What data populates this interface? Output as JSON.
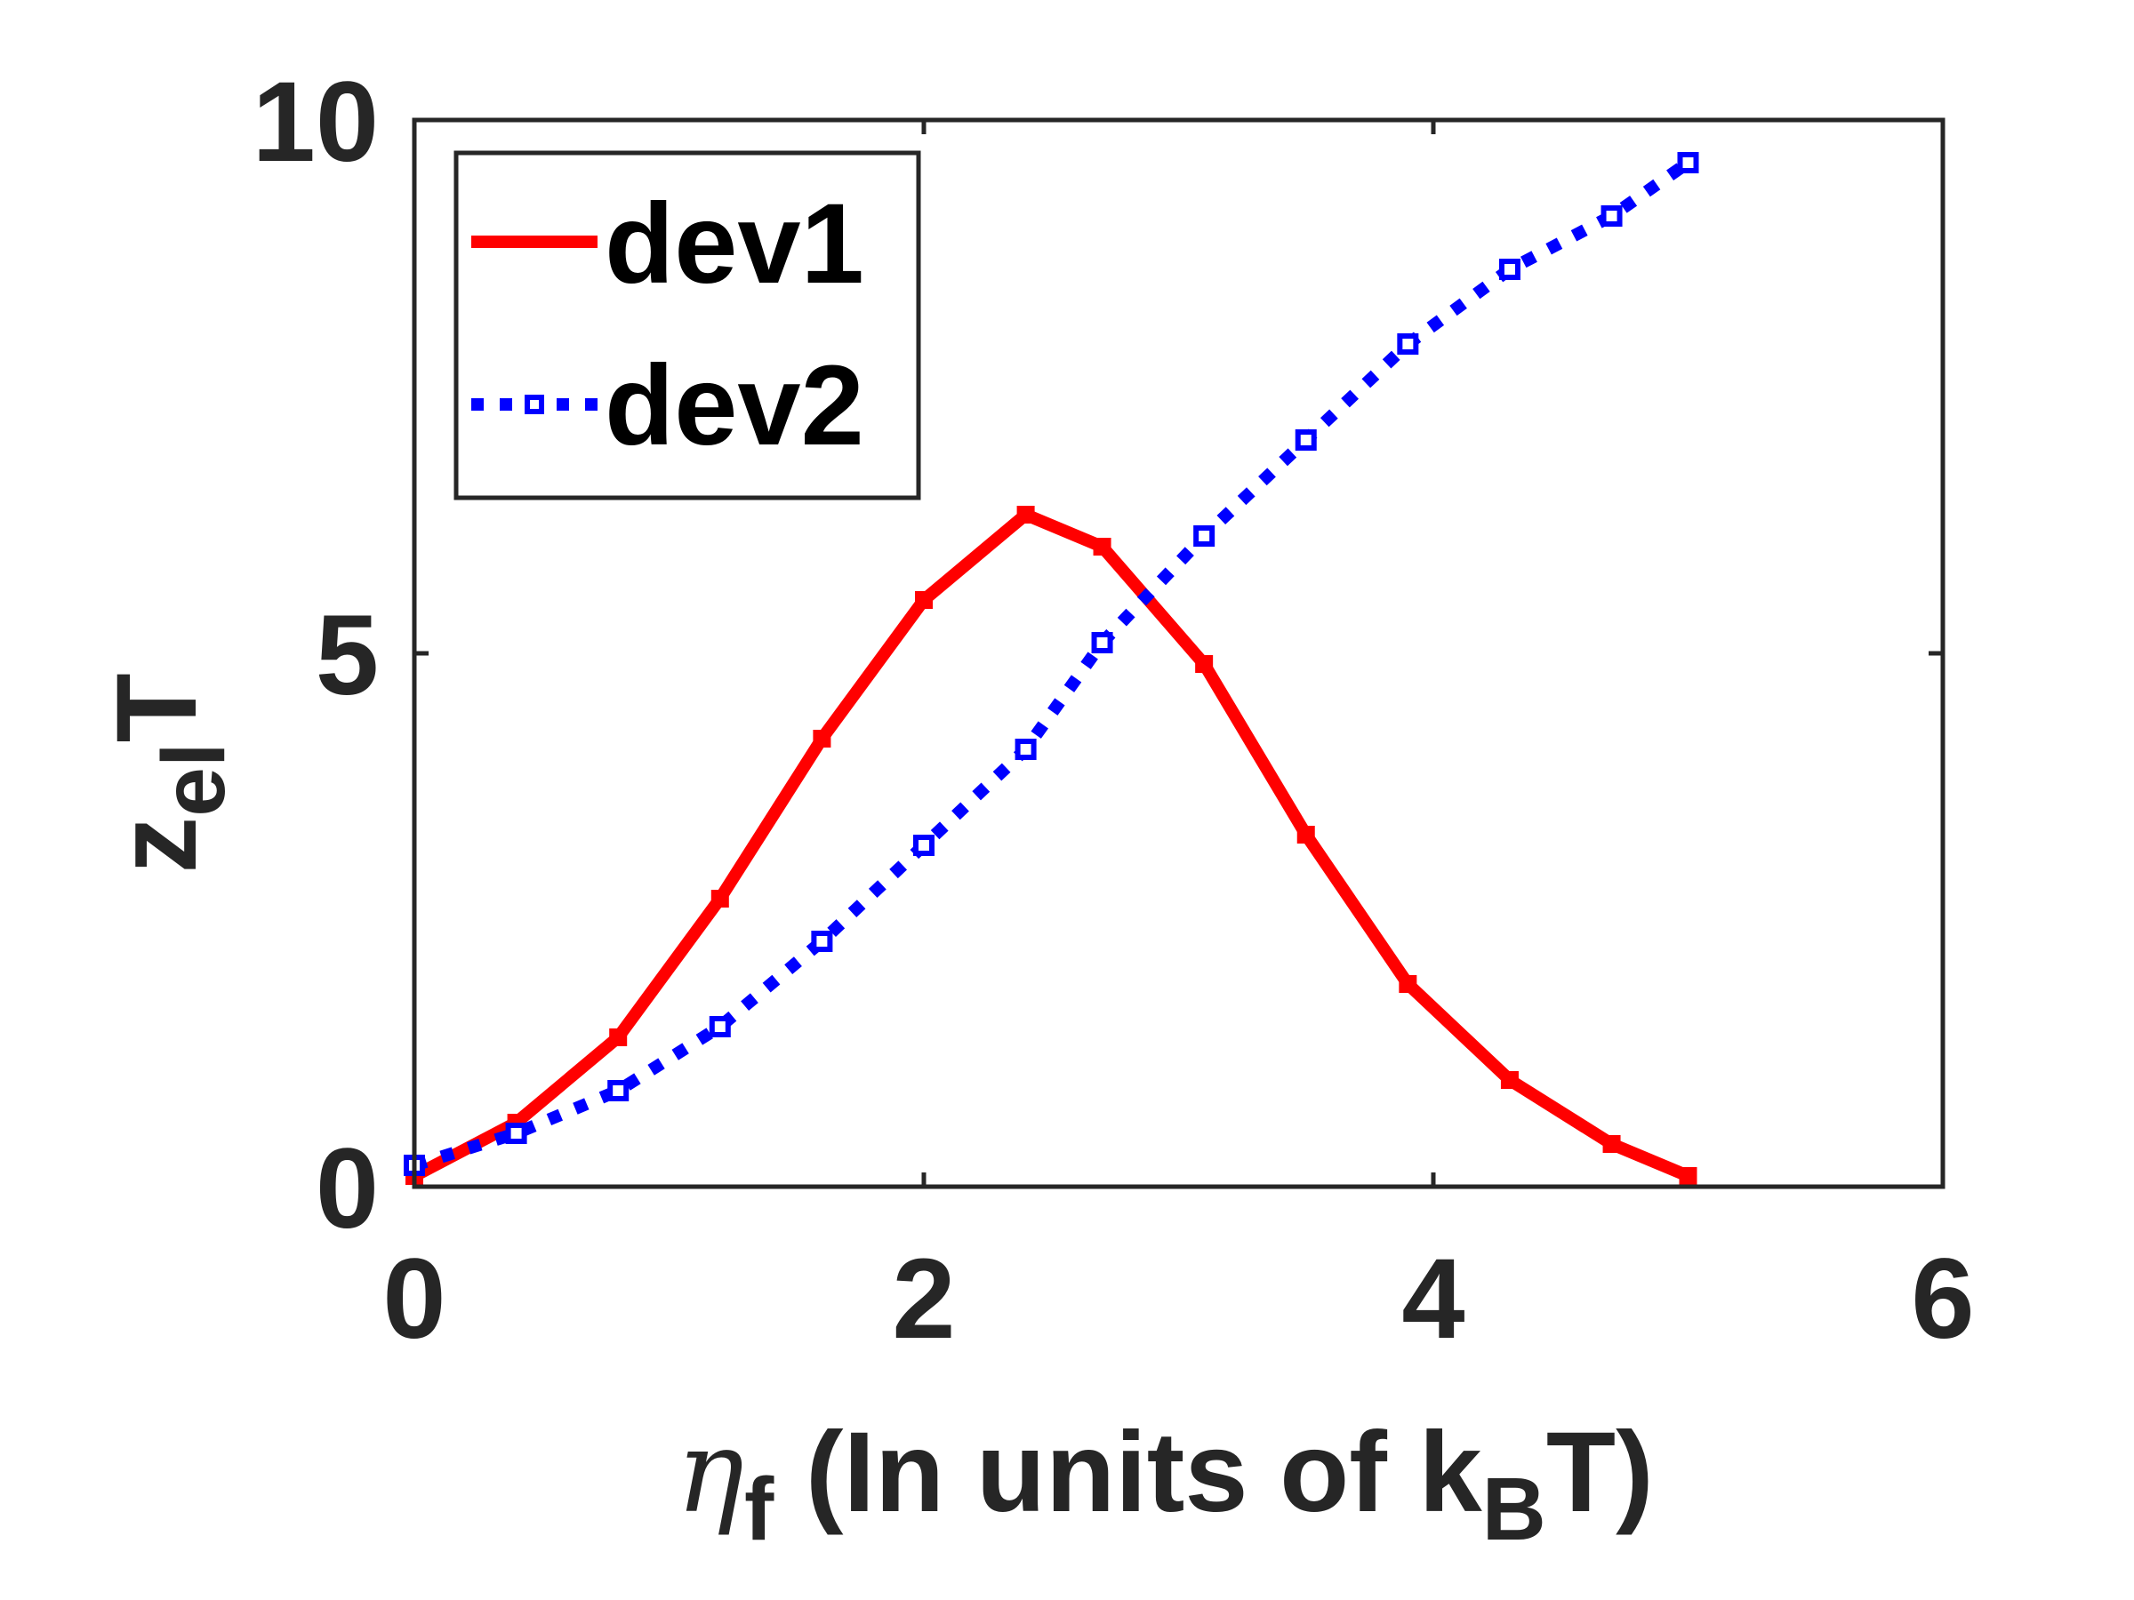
{
  "chart_data": {
    "type": "line",
    "title": "",
    "xlabel": {
      "symbol": "η",
      "symbol_sub": "f",
      "text": "(In units of k",
      "text_sub": "B",
      "text_end": "T)"
    },
    "ylabel": {
      "main": "z",
      "sub": "el",
      "end": "T"
    },
    "xlim": [
      0,
      6
    ],
    "ylim": [
      0,
      10
    ],
    "xticks": [
      0,
      2,
      4,
      6
    ],
    "yticks": [
      0,
      5,
      10
    ],
    "xtick_labels": [
      "0",
      "2",
      "4",
      "6"
    ],
    "ytick_labels": [
      "0",
      "5",
      "10"
    ],
    "grid": false,
    "legend_position": "top-left",
    "series": [
      {
        "name": "dev1",
        "color": "#ff0000",
        "line_style": "solid",
        "marker": "point",
        "x": [
          0.0,
          0.4,
          0.8,
          1.2,
          1.6,
          2.0,
          2.4,
          2.7,
          3.1,
          3.5,
          3.9,
          4.3,
          4.7,
          5.0
        ],
        "y": [
          0.1,
          0.6,
          1.4,
          2.7,
          4.2,
          5.5,
          6.3,
          6.0,
          4.9,
          3.3,
          1.9,
          1.0,
          0.4,
          0.1
        ]
      },
      {
        "name": "dev2",
        "color": "#0000ff",
        "line_style": "dotted",
        "marker": "square",
        "x": [
          0.0,
          0.4,
          0.8,
          1.2,
          1.6,
          2.0,
          2.4,
          2.7,
          3.1,
          3.5,
          3.9,
          4.3,
          4.7,
          5.0
        ],
        "y": [
          0.2,
          0.5,
          0.9,
          1.5,
          2.3,
          3.2,
          4.1,
          5.1,
          6.1,
          7.0,
          7.9,
          8.6,
          9.1,
          9.6
        ]
      }
    ]
  }
}
